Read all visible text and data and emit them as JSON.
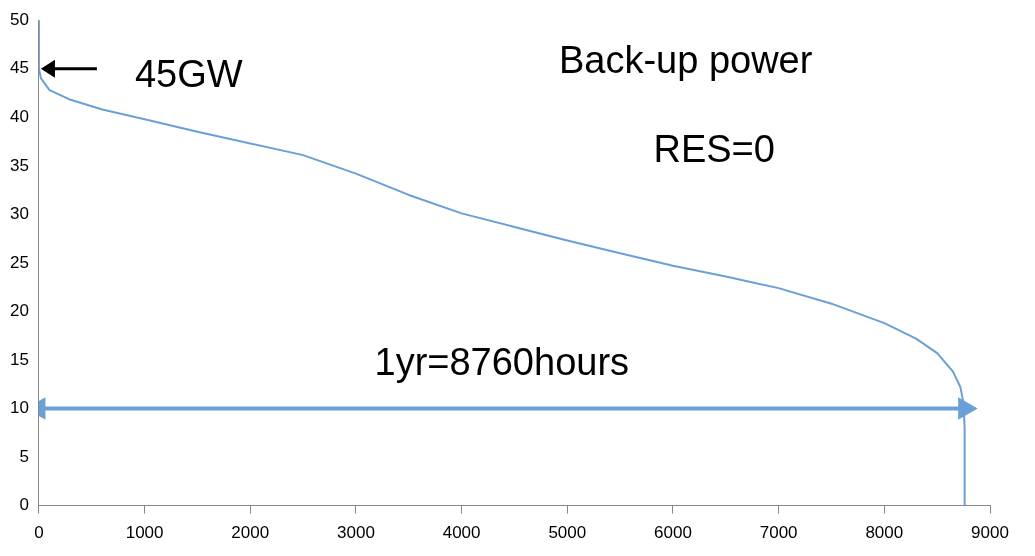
{
  "chart_data": {
    "type": "line",
    "series": [
      {
        "color": "#6a9fd8",
        "x": [
          0,
          0,
          20,
          100,
          300,
          600,
          1000,
          1500,
          2000,
          2500,
          3000,
          3500,
          4000,
          4500,
          5000,
          5500,
          6000,
          6500,
          7000,
          7500,
          8000,
          8300,
          8500,
          8650,
          8720,
          8750,
          8760,
          8760
        ],
        "values": [
          50,
          45,
          44,
          42.8,
          41.8,
          40.8,
          39.8,
          38.5,
          37.3,
          36.1,
          34.2,
          32.0,
          30.1,
          28.7,
          27.3,
          26.0,
          24.7,
          23.6,
          22.4,
          20.8,
          18.8,
          17.2,
          15.7,
          13.8,
          12.2,
          10.5,
          8,
          0
        ]
      },
      {
        "name": "1yr=8760hours",
        "color": "#6a9fd8",
        "x": [
          0,
          8760
        ],
        "values": [
          10,
          10
        ],
        "marker": "triangle"
      }
    ],
    "xlim": [
      0,
      9000
    ],
    "xticks": [
      0,
      1000,
      2000,
      3000,
      4000,
      5000,
      6000,
      7000,
      8000,
      9000
    ],
    "ylim": [
      0,
      50
    ],
    "yticks": [
      0,
      5,
      10,
      15,
      20,
      25,
      30,
      35,
      40,
      45,
      50
    ],
    "grid": false,
    "legend": false,
    "marker": "none",
    "line_style": "solid",
    "annotations": [
      "Back-up power",
      "RES=0",
      {
        "text": "45GW",
        "x": 0,
        "y": 45
      }
    ]
  }
}
